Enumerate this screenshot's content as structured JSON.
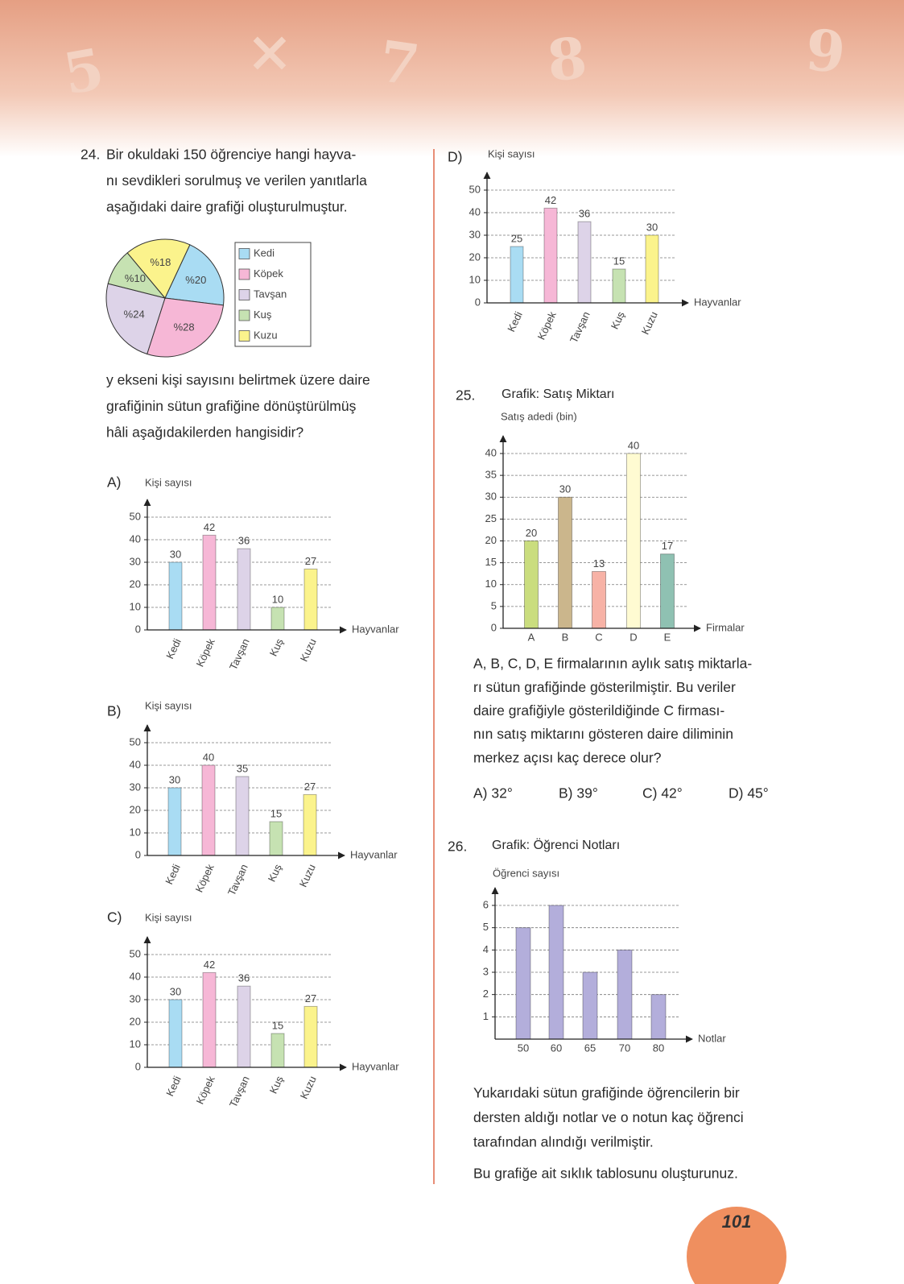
{
  "header": {
    "decor": [
      "5",
      "×",
      "7",
      "8",
      "9"
    ]
  },
  "q24": {
    "number": "24.",
    "lines": [
      "Bir okuldaki 150 öğrenciye hangi hayva-",
      "nı sevdikleri sorulmuş ve verilen yanıtlarla",
      "aşağıdaki daire grafiği oluşturulmuştur."
    ],
    "pie": {
      "type": "pie",
      "categories": [
        "Kedi",
        "Köpek",
        "Tavşan",
        "Kuş",
        "Kuzu"
      ],
      "values": [
        20,
        28,
        24,
        10,
        18
      ],
      "value_labels": [
        "%20",
        "%28",
        "%24",
        "%10",
        "%18"
      ],
      "colors": [
        "#a9dcf3",
        "#f6b7d6",
        "#ddd3e8",
        "#c6e2b2",
        "#fbf38c"
      ]
    },
    "question_lines": [
      "y ekseni kişi sayısını belirtmek üzere daire",
      "grafiğinin sütun grafiğine dönüştürülmüş",
      "hâli aşağıdakilerden hangisidir?"
    ],
    "options": [
      {
        "label": "A)",
        "chart": {
          "type": "bar",
          "y_label": "Kişi sayısı",
          "x_label": "Hayvanlar",
          "categories": [
            "Kedi",
            "Köpek",
            "Tavşan",
            "Kuş",
            "Kuzu"
          ],
          "values": [
            30,
            42,
            36,
            10,
            27
          ],
          "ylim": [
            0,
            50
          ],
          "yticks": [
            0,
            10,
            20,
            30,
            40,
            50
          ],
          "colors": [
            "#a9dcf3",
            "#f6b7d6",
            "#ddd3e8",
            "#c6e2b2",
            "#fbf38c"
          ]
        }
      },
      {
        "label": "B)",
        "chart": {
          "type": "bar",
          "y_label": "Kişi sayısı",
          "x_label": "Hayvanlar",
          "categories": [
            "Kedi",
            "Köpek",
            "Tavşan",
            "Kuş",
            "Kuzu"
          ],
          "values": [
            30,
            40,
            35,
            15,
            27
          ],
          "ylim": [
            0,
            50
          ],
          "yticks": [
            0,
            10,
            20,
            30,
            40,
            50
          ],
          "colors": [
            "#a9dcf3",
            "#f6b7d6",
            "#ddd3e8",
            "#c6e2b2",
            "#fbf38c"
          ]
        }
      },
      {
        "label": "C)",
        "chart": {
          "type": "bar",
          "y_label": "Kişi sayısı",
          "x_label": "Hayvanlar",
          "categories": [
            "Kedi",
            "Köpek",
            "Tavşan",
            "Kuş",
            "Kuzu"
          ],
          "values": [
            30,
            42,
            36,
            15,
            27
          ],
          "ylim": [
            0,
            50
          ],
          "yticks": [
            0,
            10,
            20,
            30,
            40,
            50
          ],
          "colors": [
            "#a9dcf3",
            "#f6b7d6",
            "#ddd3e8",
            "#c6e2b2",
            "#fbf38c"
          ]
        }
      },
      {
        "label": "D)",
        "chart": {
          "type": "bar",
          "y_label": "Kişi sayısı",
          "x_label": "Hayvanlar",
          "categories": [
            "Kedi",
            "Köpek",
            "Tavşan",
            "Kuş",
            "Kuzu"
          ],
          "values": [
            25,
            42,
            36,
            15,
            30
          ],
          "ylim": [
            0,
            50
          ],
          "yticks": [
            0,
            10,
            20,
            30,
            40,
            50
          ],
          "colors": [
            "#a9dcf3",
            "#f6b7d6",
            "#ddd3e8",
            "#c6e2b2",
            "#fbf38c"
          ]
        }
      }
    ]
  },
  "q25": {
    "number": "25.",
    "chart": {
      "type": "bar",
      "title": "Grafik: Satış Miktarı",
      "y_label": "Satış adedi (bin)",
      "x_label": "Firmalar",
      "categories": [
        "A",
        "B",
        "C",
        "D",
        "E"
      ],
      "values": [
        20,
        30,
        13,
        40,
        17
      ],
      "ylim": [
        0,
        40
      ],
      "yticks": [
        0,
        5,
        10,
        15,
        20,
        25,
        30,
        35,
        40
      ],
      "colors": [
        "#cadd7e",
        "#cbb68c",
        "#f7b2a6",
        "#fffbd2",
        "#8fc1b2"
      ]
    },
    "lines": [
      "A, B, C, D, E firmalarının aylık satış miktarla-",
      "rı sütun grafiğinde gösterilmiştir. Bu veriler",
      "daire grafiğiyle gösterildiğinde C firması-",
      "nın satış miktarını gösteren daire diliminin",
      "merkez açısı kaç derece olur?"
    ],
    "choices": [
      "A) 32°",
      "B) 39°",
      "C) 42°",
      "D) 45°"
    ]
  },
  "q26": {
    "number": "26.",
    "chart": {
      "type": "bar",
      "title": "Grafik: Öğrenci Notları",
      "y_label": "Öğrenci sayısı",
      "x_label": "Notlar",
      "categories": [
        "50",
        "60",
        "65",
        "70",
        "80"
      ],
      "values": [
        5,
        6,
        3,
        4,
        2
      ],
      "ylim": [
        0,
        6
      ],
      "yticks": [
        1,
        2,
        3,
        4,
        5,
        6
      ],
      "colors": [
        "#b3aedb",
        "#b3aedb",
        "#b3aedb",
        "#b3aedb",
        "#b3aedb"
      ],
      "show_values": false
    },
    "lines": [
      "Yukarıdaki sütun grafiğinde öğrencilerin bir",
      "dersten aldığı notlar ve o notun kaç öğrenci",
      "tarafından alındığı verilmiştir."
    ],
    "last_line": "Bu grafiğe ait sıklık tablosunu oluşturunuz."
  },
  "page_number": "101"
}
